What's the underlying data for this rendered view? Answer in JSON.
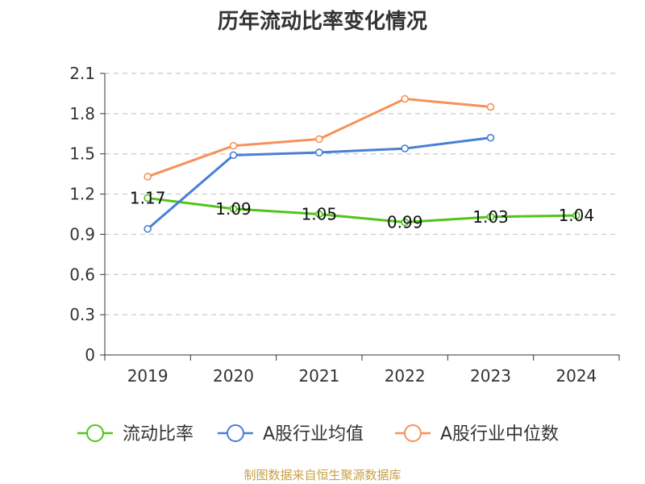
{
  "chart_data": {
    "type": "line",
    "title": "历年流动比率变化情况",
    "categories": [
      "2019",
      "2020",
      "2021",
      "2022",
      "2023",
      "2024"
    ],
    "ylim": [
      0,
      2.1
    ],
    "yticks": [
      "0",
      "0.3",
      "0.6",
      "0.9",
      "1.2",
      "1.5",
      "1.8",
      "2.1"
    ],
    "grid": true,
    "legend_position": "bottom",
    "series": [
      {
        "name": "流动比率",
        "color": "#52c41a",
        "values": [
          1.17,
          1.09,
          1.05,
          0.99,
          1.03,
          1.04
        ],
        "labels": [
          "1.17",
          "1.09",
          "1.05",
          "0.99",
          "1.03",
          "1.04"
        ]
      },
      {
        "name": "A股行业均值",
        "color": "#4a7fd6",
        "values": [
          0.94,
          1.49,
          1.51,
          1.54,
          1.62,
          null
        ]
      },
      {
        "name": "A股行业中位数",
        "color": "#f79158",
        "values": [
          1.33,
          1.56,
          1.61,
          1.91,
          1.85,
          null
        ]
      }
    ]
  },
  "source": "制图数据来自恒生聚源数据库"
}
